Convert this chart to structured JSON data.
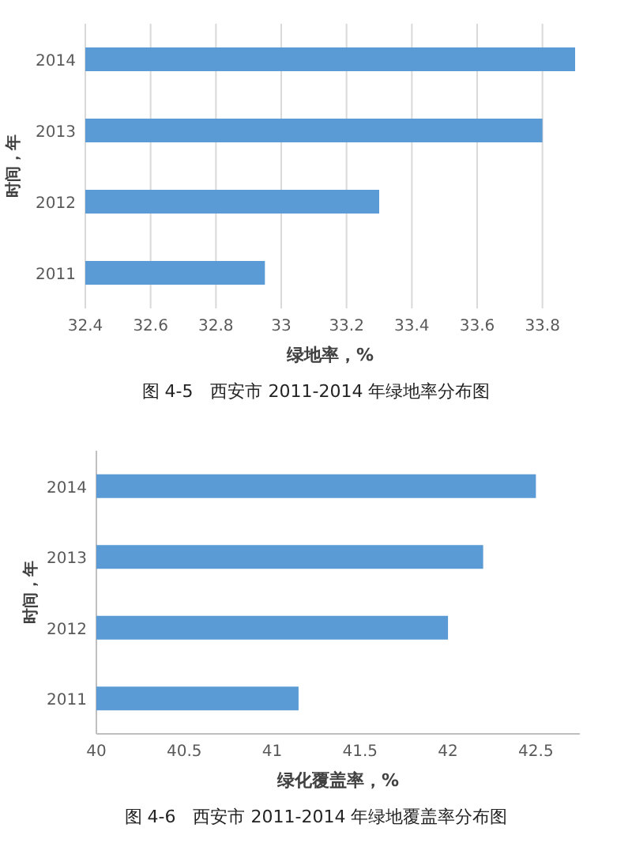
{
  "chart_data": [
    {
      "type": "bar",
      "orientation": "horizontal",
      "categories": [
        "2014",
        "2013",
        "2012",
        "2011"
      ],
      "values": [
        33.9,
        33.8,
        33.3,
        32.95
      ],
      "color": "#5b9bd5",
      "xlim": [
        32.4,
        33.9
      ],
      "xticks": [
        32.4,
        32.6,
        32.8,
        33,
        33.2,
        33.4,
        33.6,
        33.8
      ],
      "xlabel": "绿地率，%",
      "ylabel": "时间，年",
      "grid": "x",
      "annotations": [
        "图 4-5　西安市 2011-2014 年绿地率分布图"
      ]
    },
    {
      "type": "bar",
      "orientation": "horizontal",
      "categories": [
        "2014",
        "2013",
        "2012",
        "2011"
      ],
      "values": [
        42.5,
        42.2,
        42.0,
        41.15
      ],
      "color": "#5b9bd5",
      "xlim": [
        40,
        42.75
      ],
      "xticks": [
        40,
        40.5,
        41,
        41.5,
        42,
        42.5
      ],
      "xlabel": "绿化覆盖率，%",
      "ylabel": "时间，年",
      "grid": false,
      "annotations": [
        "图 4-6　西安市 2011-2014 年绿地覆盖率分布图"
      ]
    }
  ]
}
